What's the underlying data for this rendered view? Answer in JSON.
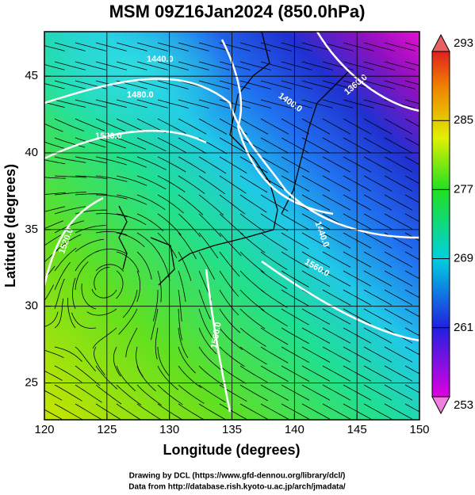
{
  "chart_data": {
    "type": "map",
    "title": "MSM 09Z16Jan2024 (850.0hPa)",
    "x_label": "Longitude (degrees)",
    "y_label": "Latitude  (degrees)",
    "xlim": [
      120,
      150
    ],
    "ylim": [
      22.6,
      47.9
    ],
    "xticks": [
      120,
      125,
      130,
      135,
      140,
      145,
      150
    ],
    "yticks": [
      25,
      30,
      35,
      40,
      45
    ],
    "colorbar": {
      "lim": [
        253,
        293
      ],
      "ticks": [
        253,
        261,
        269,
        277,
        285,
        293
      ]
    },
    "contour_labels": [
      "1440.0",
      "1480.0",
      "1520.0",
      "1400.0",
      "1360.0",
      "1440.0",
      "1560.0",
      "1520.0",
      "1560.0"
    ],
    "credits": [
      "Drawing by DCL (https://www.gfd-dennou.org/library/dcl/)",
      "Data from http://database.rish.kyoto-u.ac.jp/arch/jmadata/"
    ]
  }
}
